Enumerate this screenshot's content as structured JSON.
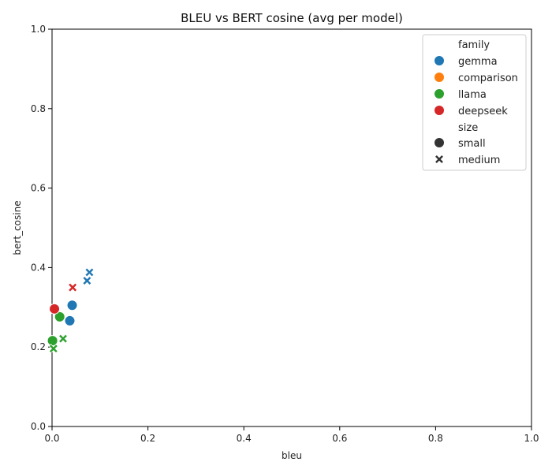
{
  "chart_data": {
    "type": "scatter",
    "title": "BLEU vs BERT cosine (avg per model)",
    "xlabel": "bleu",
    "ylabel": "bert_cosine",
    "xlim": [
      0,
      1
    ],
    "ylim": [
      0,
      1
    ],
    "xticks": [
      "0.0",
      "0.2",
      "0.4",
      "0.6",
      "0.8",
      "1.0"
    ],
    "yticks": [
      "0.0",
      "0.2",
      "0.4",
      "0.6",
      "0.8",
      "1.0"
    ],
    "grid": false,
    "legend": {
      "placement": "top-right",
      "hue_title": "family",
      "hue_entries": [
        {
          "name": "gemma",
          "color": "#1f77b4"
        },
        {
          "name": "comparison",
          "color": "#ff7f0e"
        },
        {
          "name": "llama",
          "color": "#2ca02c"
        },
        {
          "name": "deepseek",
          "color": "#d62728"
        }
      ],
      "style_title": "size",
      "style_entries": [
        {
          "name": "small",
          "marker": "circle"
        },
        {
          "name": "medium",
          "marker": "x"
        }
      ]
    },
    "points": [
      {
        "x": 0.042,
        "y": 0.305,
        "family": "gemma",
        "size": "small"
      },
      {
        "x": 0.037,
        "y": 0.266,
        "family": "gemma",
        "size": "small"
      },
      {
        "x": 0.078,
        "y": 0.388,
        "family": "gemma",
        "size": "medium"
      },
      {
        "x": 0.073,
        "y": 0.367,
        "family": "gemma",
        "size": "medium"
      },
      {
        "x": 0.016,
        "y": 0.276,
        "family": "llama",
        "size": "small"
      },
      {
        "x": 0.001,
        "y": 0.216,
        "family": "llama",
        "size": "small"
      },
      {
        "x": 0.023,
        "y": 0.221,
        "family": "llama",
        "size": "medium"
      },
      {
        "x": 0.003,
        "y": 0.196,
        "family": "llama",
        "size": "medium"
      },
      {
        "x": 0.005,
        "y": 0.296,
        "family": "deepseek",
        "size": "small"
      },
      {
        "x": 0.043,
        "y": 0.35,
        "family": "deepseek",
        "size": "medium"
      }
    ]
  }
}
